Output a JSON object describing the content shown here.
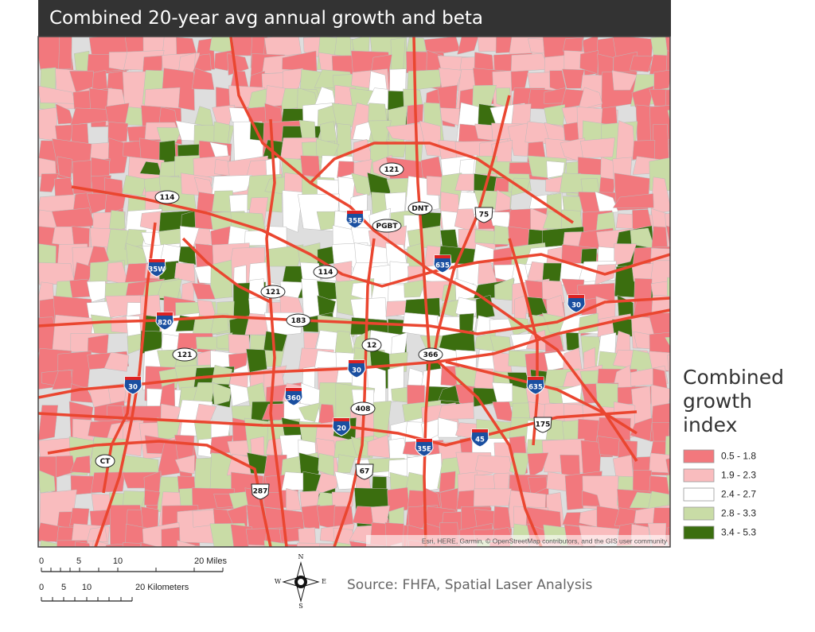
{
  "title": "Combined 20-year avg annual growth and beta",
  "legend": {
    "title": "Combined growth index",
    "items": [
      {
        "label": "0.5 - 1.8",
        "color": "#f2787d"
      },
      {
        "label": "1.9 - 2.3",
        "color": "#f9bcbe"
      },
      {
        "label": "2.4 - 2.7",
        "color": "#ffffff"
      },
      {
        "label": "2.8 - 3.3",
        "color": "#c9dca6"
      },
      {
        "label": "3.4 - 5.3",
        "color": "#3b6e0f"
      }
    ]
  },
  "scale_bar": {
    "miles": [
      "0",
      "5",
      "10",
      "20 Miles"
    ],
    "kilometers": [
      "0",
      "5",
      "10",
      "20 Kilometers"
    ]
  },
  "compass": {
    "n": "N",
    "e": "E",
    "s": "S",
    "w": "W"
  },
  "source": "Source: FHFA, Spatial Laser Analysis",
  "attribution": "Esri, HERE, Garmin, © OpenStreetMap contributors, and the GIS user community",
  "road_labels": [
    "114",
    "35E",
    "121",
    "DNT",
    "75",
    "PGBT",
    "635",
    "35W",
    "114",
    "121",
    "30",
    "820",
    "183",
    "12",
    "366",
    "121",
    "30",
    "30",
    "360",
    "408",
    "20",
    "35E",
    "45",
    "635",
    "175",
    "CT",
    "67",
    "287"
  ]
}
